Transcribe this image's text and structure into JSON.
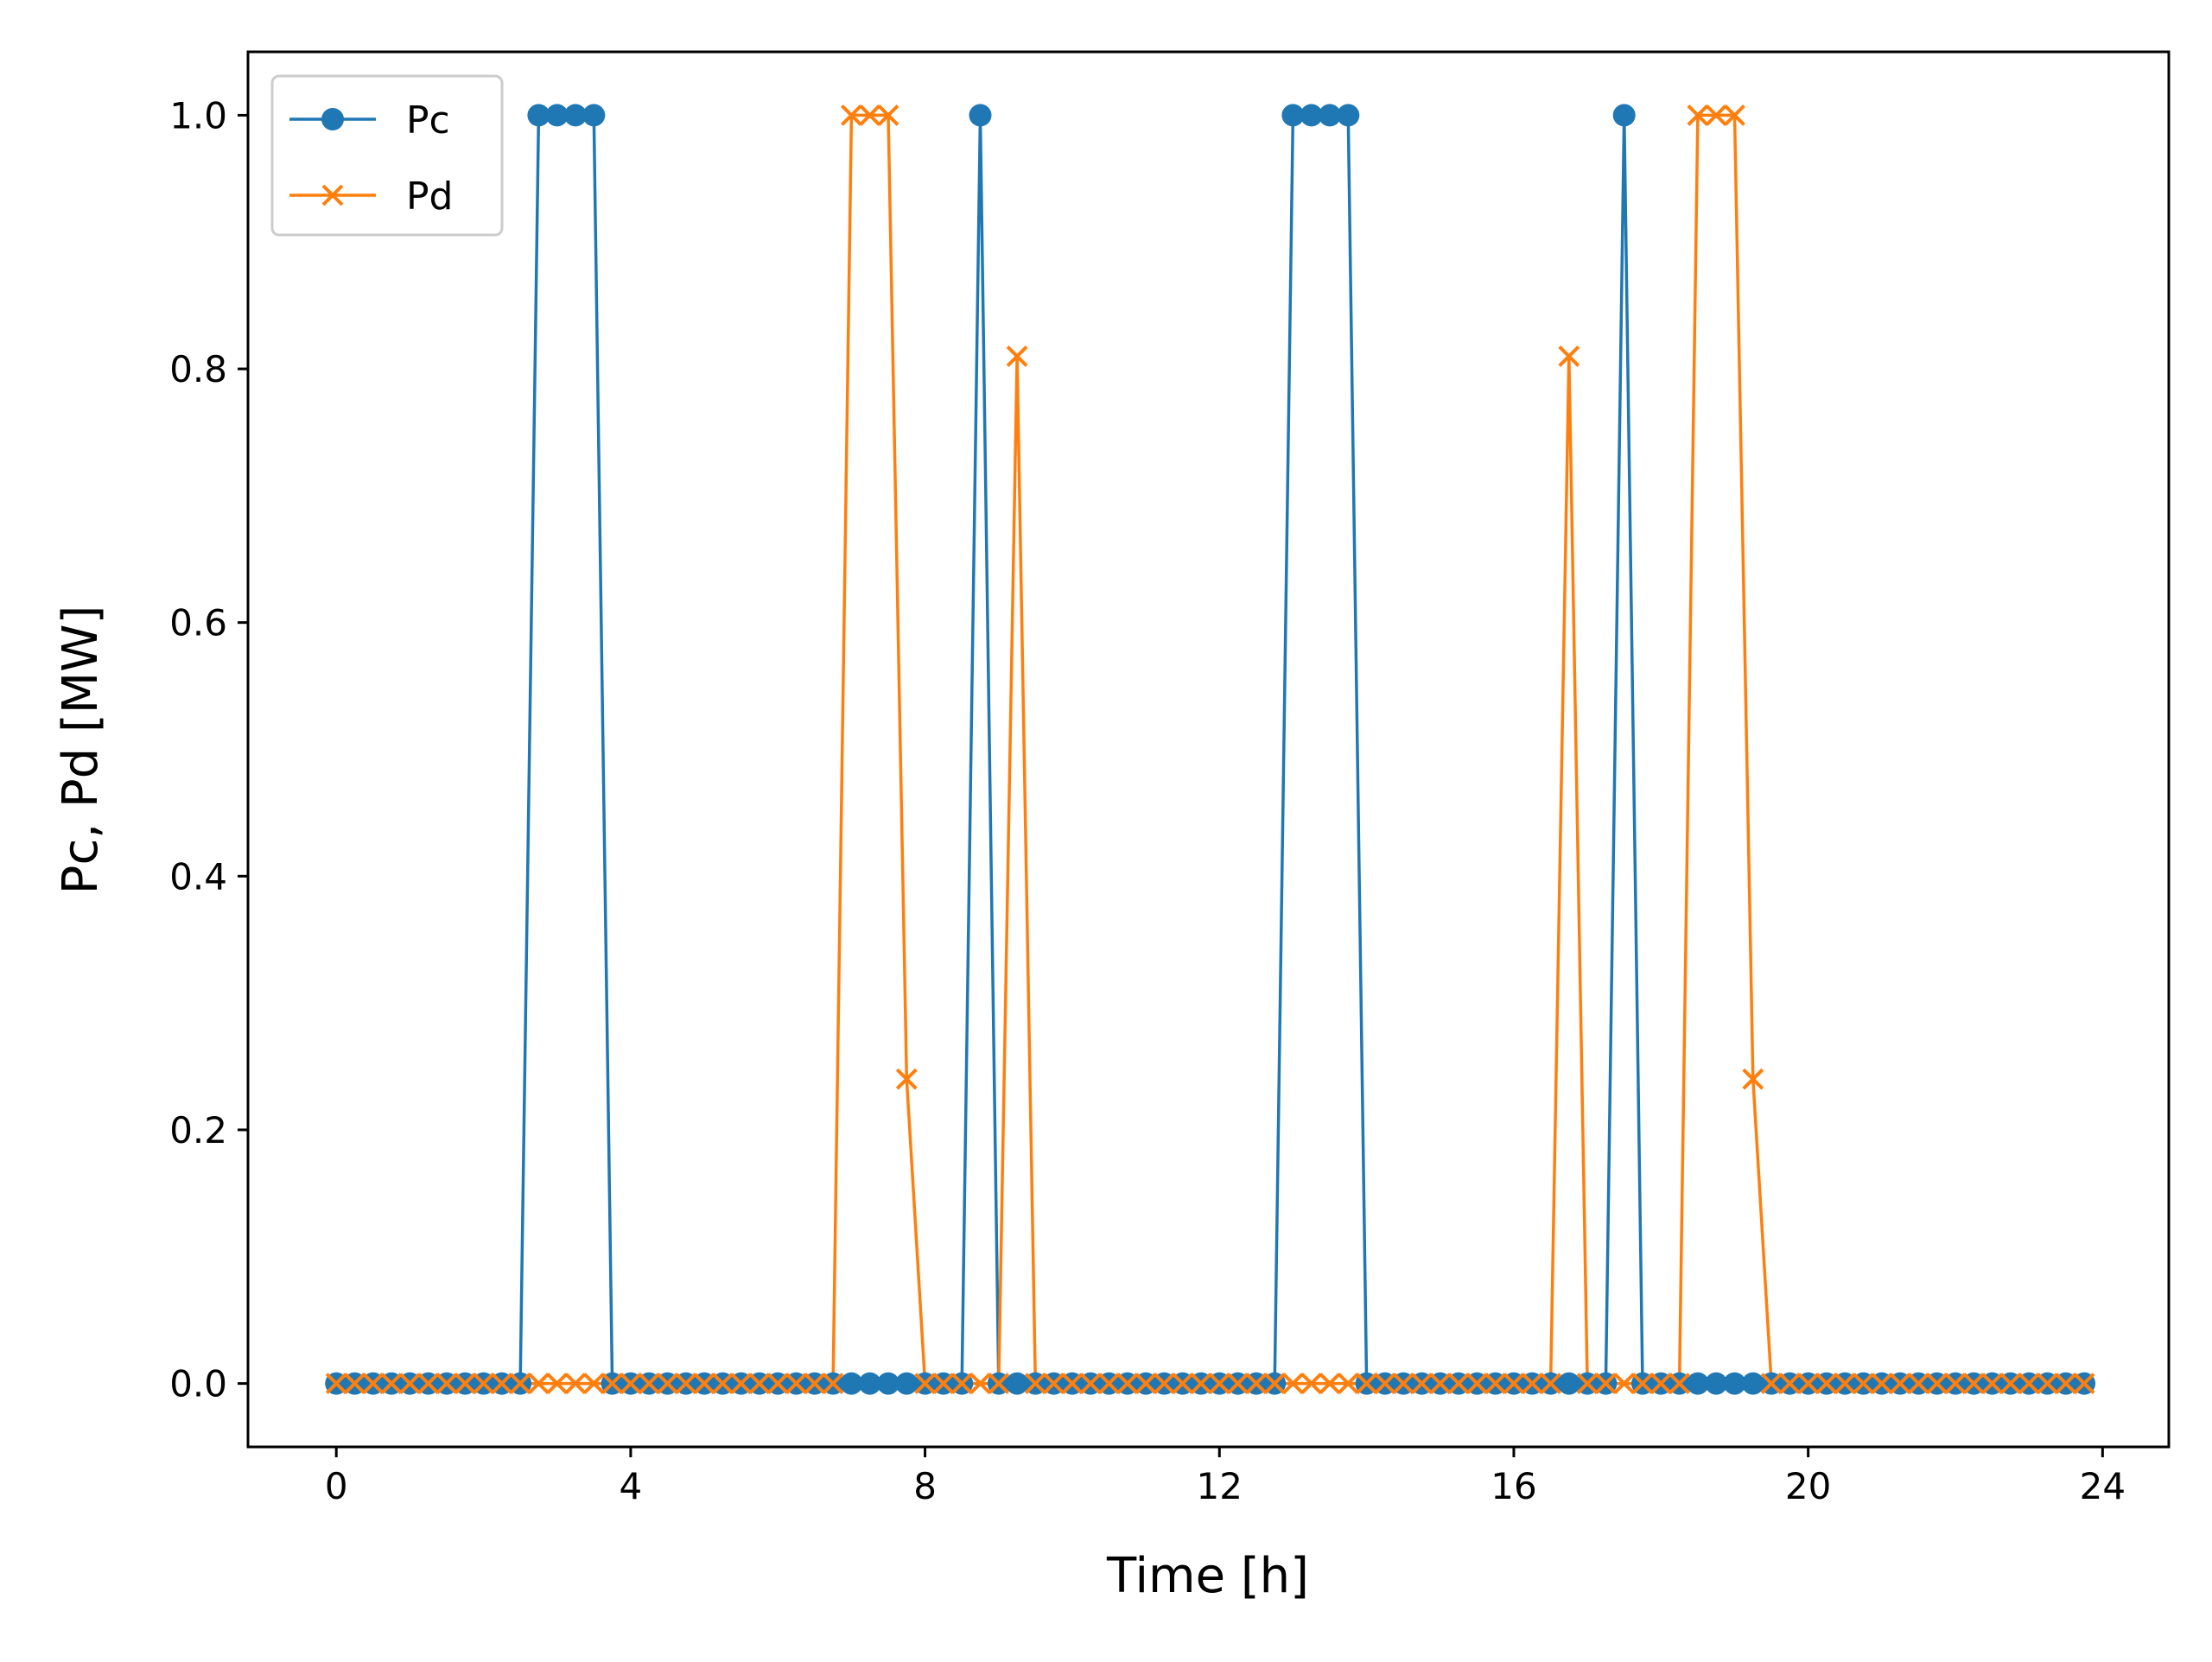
{
  "chart_data": {
    "type": "line",
    "xlabel": "Time [h]",
    "ylabel": "Pc, Pd [MW]",
    "xlim": [
      -1.2,
      24.9
    ],
    "ylim": [
      -0.05,
      1.05
    ],
    "xticks": [
      0,
      4,
      8,
      12,
      16,
      20,
      24
    ],
    "xtick_labels": [
      "0",
      "4",
      "8",
      "12",
      "16",
      "20",
      "24"
    ],
    "yticks": [
      0.0,
      0.2,
      0.4,
      0.6,
      0.8,
      1.0
    ],
    "ytick_labels": [
      "0.0",
      "0.2",
      "0.4",
      "0.6",
      "0.8",
      "1.0"
    ],
    "grid": false,
    "legend_position": "top-left",
    "x_step": 0.25,
    "series": [
      {
        "name": "Pc",
        "color": "#1f77b4",
        "marker": "circle",
        "values": [
          0,
          0,
          0,
          0,
          0,
          0,
          0,
          0,
          0,
          0,
          0,
          1,
          1,
          1,
          1,
          0,
          0,
          0,
          0,
          0,
          0,
          0,
          0,
          0,
          0,
          0,
          0,
          0,
          0,
          0,
          0,
          0,
          0,
          0,
          0,
          1,
          0,
          0,
          0,
          0,
          0,
          0,
          0,
          0,
          0,
          0,
          0,
          0,
          0,
          0,
          0,
          0,
          1,
          1,
          1,
          1,
          0,
          0,
          0,
          0,
          0,
          0,
          0,
          0,
          0,
          0,
          0,
          0,
          0,
          0,
          1,
          0,
          0,
          0,
          0,
          0,
          0,
          0,
          0,
          0,
          0,
          0,
          0,
          0,
          0,
          0,
          0,
          0,
          0,
          0,
          0,
          0,
          0,
          0,
          0,
          0
        ]
      },
      {
        "name": "Pd",
        "color": "#ff7f0e",
        "marker": "x",
        "values": [
          0,
          0,
          0,
          0,
          0,
          0,
          0,
          0,
          0,
          0,
          0,
          0,
          0,
          0,
          0,
          0,
          0,
          0,
          0,
          0,
          0,
          0,
          0,
          0,
          0,
          0,
          0,
          0,
          1,
          1,
          1,
          0.24,
          0,
          0,
          0,
          0,
          0,
          0.81,
          0,
          0,
          0,
          0,
          0,
          0,
          0,
          0,
          0,
          0,
          0,
          0,
          0,
          0,
          0,
          0,
          0,
          0,
          0,
          0,
          0,
          0,
          0,
          0,
          0,
          0,
          0,
          0,
          0,
          0.81,
          0,
          0,
          0,
          0,
          0,
          0,
          1,
          1,
          1,
          0.24,
          0,
          0,
          0,
          0,
          0,
          0,
          0,
          0,
          0,
          0,
          0,
          0,
          0,
          0,
          0,
          0,
          0,
          0
        ]
      }
    ]
  }
}
